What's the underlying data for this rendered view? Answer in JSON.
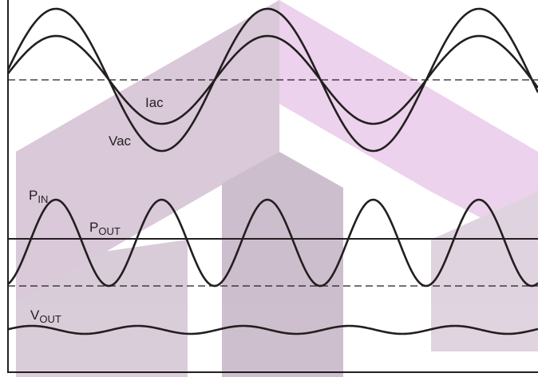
{
  "labels": {
    "iac": "Iac",
    "vac": "Vac",
    "pin": {
      "main": "P",
      "sub": "IN"
    },
    "pout": {
      "main": "P",
      "sub": "OUT"
    },
    "vout": {
      "main": "V",
      "sub": "OUT"
    }
  }
}
